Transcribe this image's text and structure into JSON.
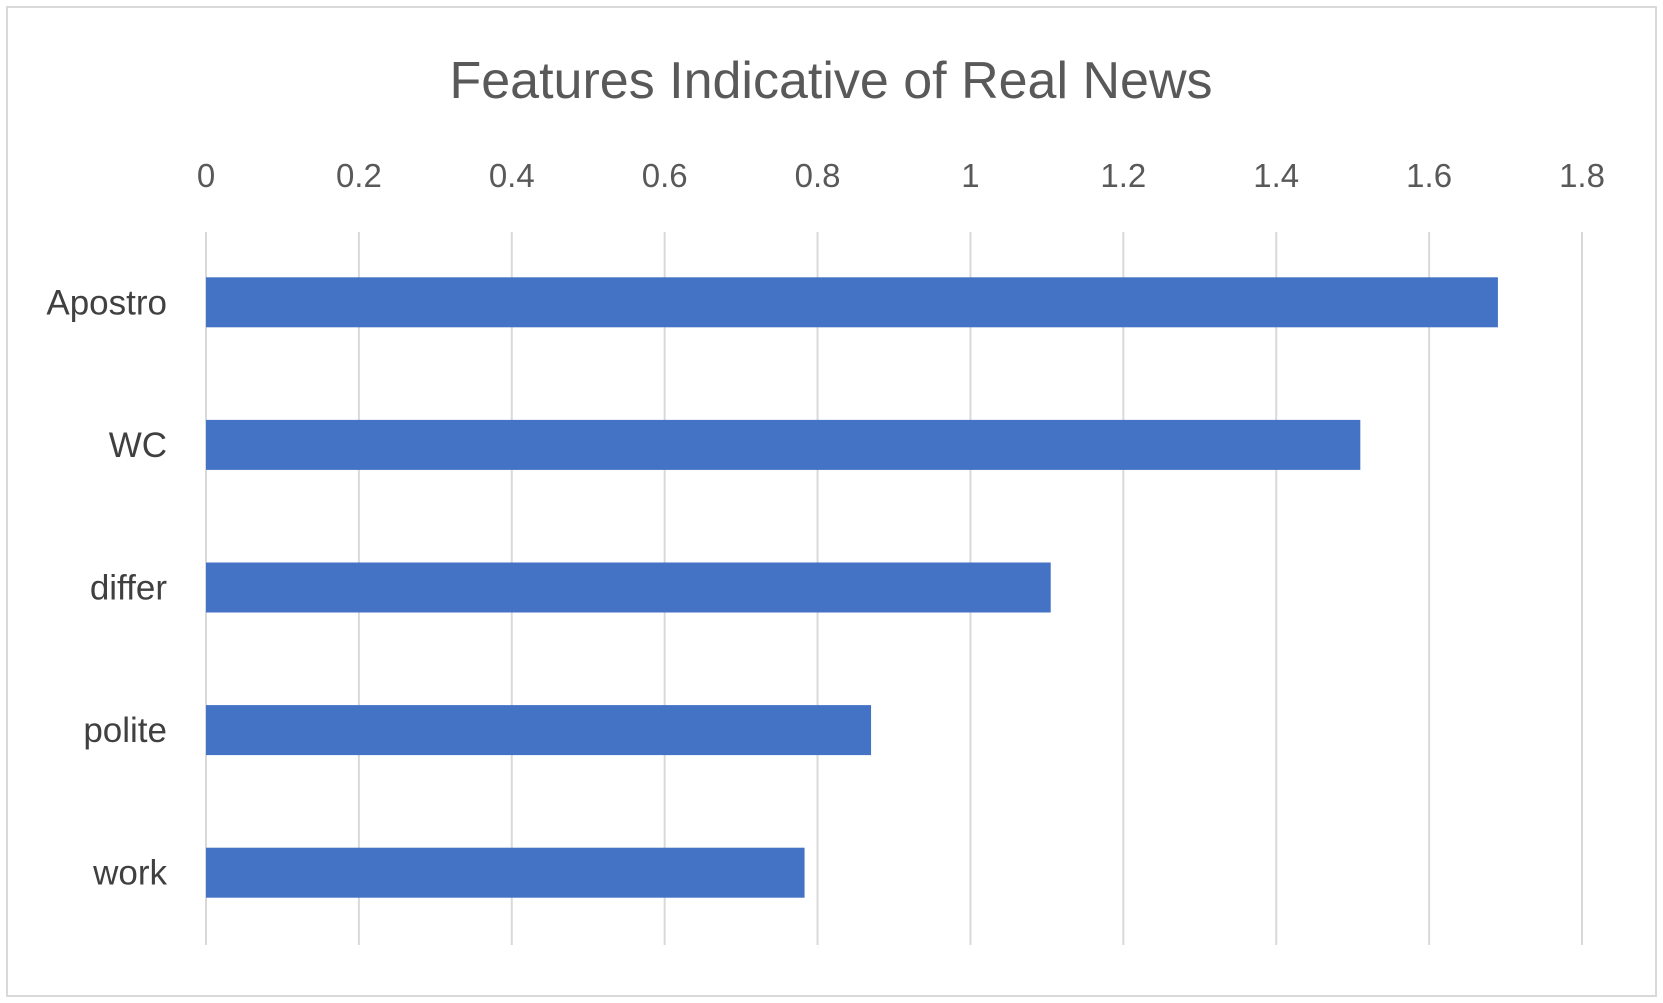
{
  "chart_data": {
    "type": "bar",
    "orientation": "horizontal",
    "title": "Features Indicative of Real News",
    "xlabel": "",
    "ylabel": "",
    "categories": [
      "Apostro",
      "WC",
      "differ",
      "polite",
      "work"
    ],
    "values": [
      1.69,
      1.51,
      1.105,
      0.87,
      0.783
    ],
    "xlim": [
      0,
      1.8
    ],
    "ticks": [
      0,
      0.2,
      0.4,
      0.6,
      0.8,
      1,
      1.2,
      1.4,
      1.6,
      1.8
    ],
    "tick_labels": [
      "0",
      "0.2",
      "0.4",
      "0.6",
      "0.8",
      "1",
      "1.2",
      "1.4",
      "1.6",
      "1.8"
    ],
    "x_axis_position": "top",
    "grid": true,
    "legend": "none",
    "bar_color": "#4472C4",
    "grid_color": "#D9D9D9",
    "text_color": "#595959"
  }
}
